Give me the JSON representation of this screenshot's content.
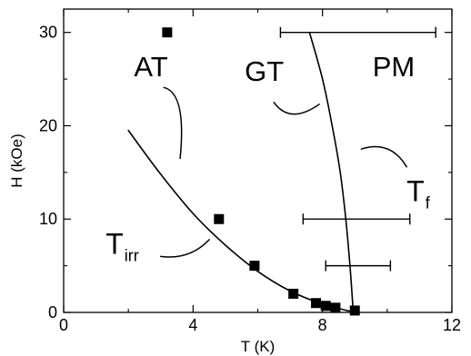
{
  "chart_data": {
    "type": "scatter",
    "xlabel": "T (K)",
    "ylabel": "H (kOe)",
    "xlim": [
      0,
      12
    ],
    "ylim": [
      0,
      32.5
    ],
    "xticks": [
      0,
      4,
      8,
      12
    ],
    "yticks": [
      0,
      10,
      20,
      30
    ],
    "grid": false,
    "legend": "none",
    "series": [
      {
        "points": [
          {
            "x": 3.2,
            "y": 30.0
          },
          {
            "x": 4.8,
            "y": 10.0
          },
          {
            "x": 5.9,
            "y": 5.0
          },
          {
            "x": 7.1,
            "y": 2.0
          },
          {
            "x": 7.8,
            "y": 1.0
          },
          {
            "x": 8.1,
            "y": 0.7
          },
          {
            "x": 8.4,
            "y": 0.5
          },
          {
            "x": 9.0,
            "y": 0.2
          }
        ],
        "marker": "square"
      }
    ],
    "curves": [
      {
        "id": "t_irr",
        "points": [
          [
            2.0,
            19.5
          ],
          [
            3.0,
            14.8
          ],
          [
            4.0,
            10.6
          ],
          [
            5.0,
            7.2
          ],
          [
            6.0,
            4.4
          ],
          [
            7.0,
            2.3
          ],
          [
            8.0,
            0.9
          ],
          [
            9.0,
            0.0
          ]
        ]
      },
      {
        "id": "t_f",
        "points": [
          [
            7.6,
            30.0
          ],
          [
            8.0,
            25.0
          ],
          [
            8.3,
            20.0
          ],
          [
            8.55,
            15.0
          ],
          [
            8.72,
            10.0
          ],
          [
            8.85,
            5.0
          ],
          [
            8.95,
            0.0
          ]
        ]
      }
    ],
    "error_bars": [
      {
        "y": 30.0,
        "x_min": 6.7,
        "x_max": 11.5
      },
      {
        "y": 10.0,
        "x_min": 7.4,
        "x_max": 10.7
      },
      {
        "y": 5.0,
        "x_min": 8.1,
        "x_max": 10.1
      }
    ],
    "annotations": {
      "regions": [
        {
          "text": "AT",
          "x": 2.7,
          "y": 25.3
        },
        {
          "text": "GT",
          "x": 6.2,
          "y": 24.8
        },
        {
          "text": "PM",
          "x": 10.2,
          "y": 25.3
        }
      ],
      "curve_labels": [
        {
          "main": "T",
          "sub": "irr",
          "x": 1.3,
          "y": 6.3
        },
        {
          "main": "T",
          "sub": "f",
          "x": 10.6,
          "y": 11.9
        }
      ],
      "pointers": [
        {
          "points": [
            [
              3.1,
              24.1
            ],
            [
              3.8,
              23.5
            ],
            [
              3.6,
              16.5
            ]
          ]
        },
        {
          "points": [
            [
              6.5,
              22.5
            ],
            [
              7.0,
              20.1
            ],
            [
              7.9,
              22.3
            ]
          ]
        },
        {
          "points": [
            [
              9.2,
              17.5
            ],
            [
              10.1,
              18.5
            ],
            [
              10.6,
              15.6
            ]
          ]
        },
        {
          "points": [
            [
              3.0,
              6.0
            ],
            [
              3.9,
              5.6
            ],
            [
              4.5,
              7.8
            ]
          ]
        }
      ]
    },
    "colors": {
      "axis": "#000000",
      "marker": "#000000",
      "line": "#000000"
    }
  }
}
